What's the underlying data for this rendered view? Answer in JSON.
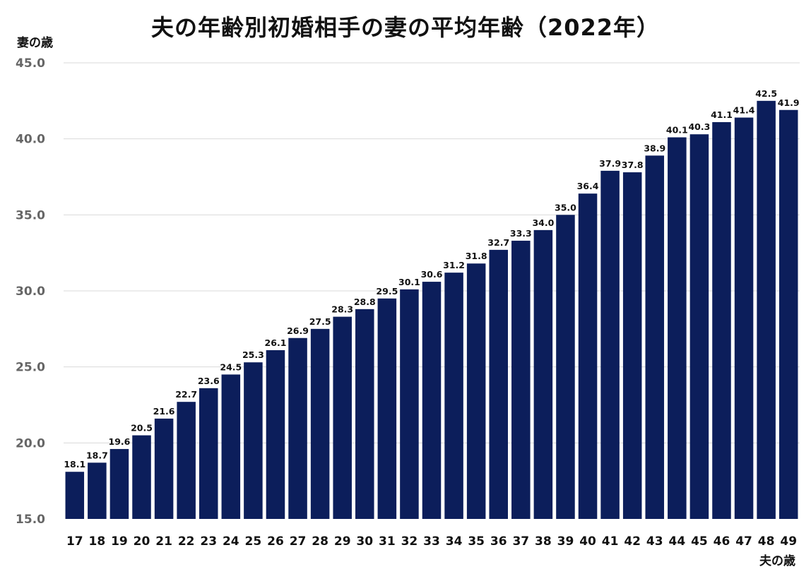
{
  "chart_data": {
    "type": "bar",
    "title": "夫の年齢別初婚相手の妻の平均年齢（2022年）",
    "ylabel": "妻の歳",
    "xlabel": "夫の歳",
    "ylim": [
      15.0,
      45.0
    ],
    "yticks": [
      "15.0",
      "20.0",
      "25.0",
      "30.0",
      "35.0",
      "40.0",
      "45.0"
    ],
    "grid": true,
    "bar_color": "#0c1e5b",
    "categories": [
      "17",
      "18",
      "19",
      "20",
      "21",
      "22",
      "23",
      "24",
      "25",
      "26",
      "27",
      "28",
      "29",
      "30",
      "31",
      "32",
      "33",
      "34",
      "35",
      "36",
      "37",
      "38",
      "39",
      "40",
      "41",
      "42",
      "43",
      "44",
      "45",
      "46",
      "47",
      "48",
      "49"
    ],
    "values": [
      18.1,
      18.7,
      19.6,
      20.5,
      21.6,
      22.7,
      23.6,
      24.5,
      25.3,
      26.1,
      26.9,
      27.5,
      28.3,
      28.8,
      29.5,
      30.1,
      30.6,
      31.2,
      31.8,
      32.7,
      33.3,
      34.0,
      35.0,
      36.4,
      37.9,
      37.8,
      38.9,
      40.1,
      40.3,
      41.1,
      41.4,
      42.5,
      41.9
    ],
    "data_labels": [
      "18.1",
      "18.7",
      "19.6",
      "20.5",
      "21.6",
      "22.7",
      "23.6",
      "24.5",
      "25.3",
      "26.1",
      "26.9",
      "27.5",
      "28.3",
      "28.8",
      "29.5",
      "30.1",
      "30.6",
      "31.2",
      "31.8",
      "32.7",
      "33.3",
      "34.0",
      "35.0",
      "36.4",
      "37.9",
      "37.8",
      "38.9",
      "40.1",
      "40.3",
      "41.1",
      "41.4",
      "42.5",
      "41.9"
    ]
  }
}
